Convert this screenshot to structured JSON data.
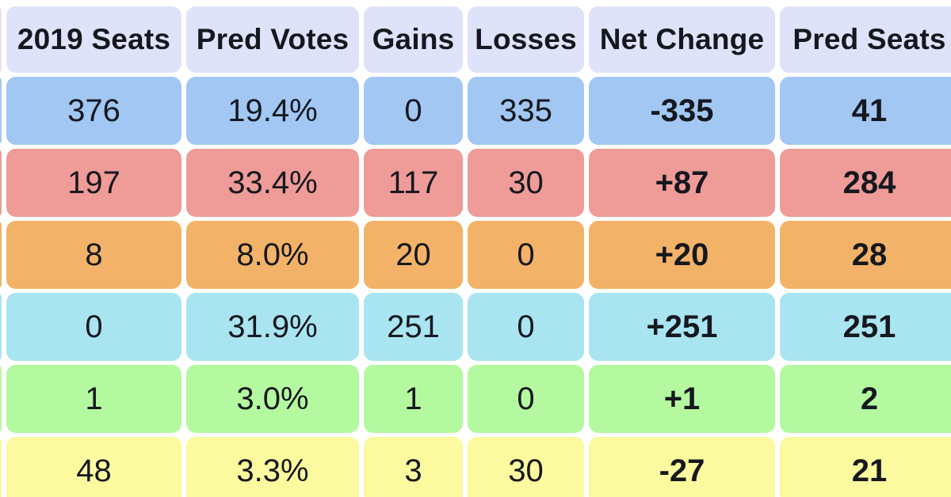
{
  "chart_data": {
    "type": "table",
    "title": "",
    "columns": [
      "2019 Seats",
      "Pred Votes",
      "Gains",
      "Losses",
      "Net Change",
      "Pred Seats"
    ],
    "rows": [
      {
        "row_id": "blue",
        "color": "#a2c7f3",
        "cells": [
          "376",
          "19.4%",
          "0",
          "335",
          "-335",
          "41"
        ]
      },
      {
        "row_id": "red",
        "color": "#ef9b98",
        "cells": [
          "197",
          "33.4%",
          "117",
          "30",
          "+87",
          "284"
        ]
      },
      {
        "row_id": "orange",
        "color": "#f2b369",
        "cells": [
          "8",
          "8.0%",
          "20",
          "0",
          "+20",
          "28"
        ]
      },
      {
        "row_id": "cyan",
        "color": "#a9e5f1",
        "cells": [
          "0",
          "31.9%",
          "251",
          "0",
          "+251",
          "251"
        ]
      },
      {
        "row_id": "green",
        "color": "#b4f9a0",
        "cells": [
          "1",
          "3.0%",
          "1",
          "0",
          "+1",
          "2"
        ]
      },
      {
        "row_id": "yellow",
        "color": "#fbfa9e",
        "cells": [
          "48",
          "3.3%",
          "3",
          "30",
          "-27",
          "21"
        ]
      }
    ],
    "layout_hints": {
      "header_position": "top",
      "grid": "rounded cells separated by white gaps",
      "cropped_edges": "left column, right column and bottom row are partially cut off"
    }
  },
  "styles": {
    "header_bg": "#dfe3fa",
    "text_color": "#16181f",
    "gap_color": "#ffffff"
  }
}
